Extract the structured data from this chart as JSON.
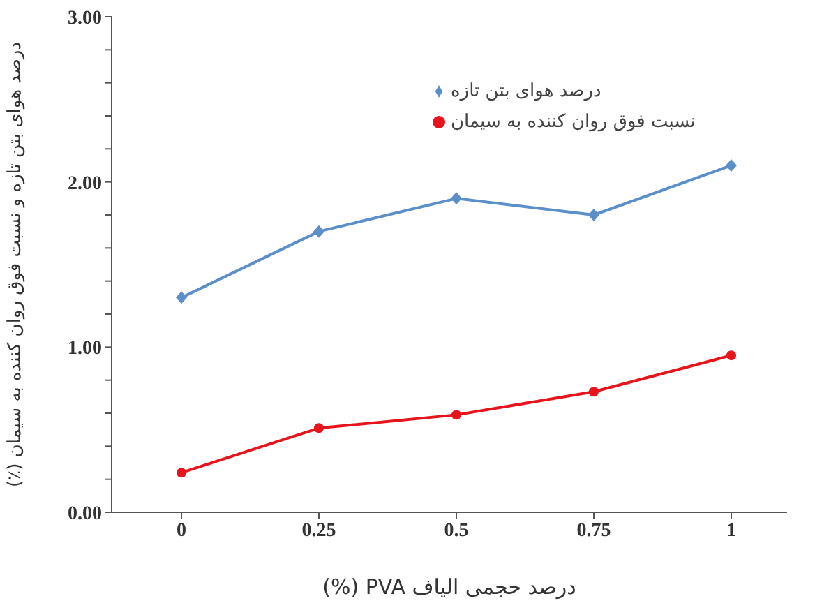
{
  "chart_data": {
    "type": "line",
    "xlabel": "درصد حجمی الیاف PVA (%)",
    "ylabel": "درصد هوای بتن تازه و نسبت فوق روان کننده به سیمان (٪)",
    "categories": [
      "0",
      "0.25",
      "0.5",
      "0.75",
      "1"
    ],
    "series": [
      {
        "name": "درصد هوای بتن تازه",
        "color": "#5b8fc9",
        "marker": "diamond",
        "values": [
          1.3,
          1.7,
          1.9,
          1.8,
          2.1
        ]
      },
      {
        "name": "نسبت فوق روان کننده به سیمان",
        "color": "#e8141c",
        "marker": "circle",
        "values": [
          0.24,
          0.51,
          0.59,
          0.73,
          0.95
        ]
      }
    ],
    "ylim": [
      0,
      3
    ],
    "yticks": [
      {
        "value": 0,
        "label": "0.00"
      },
      {
        "value": 0.2,
        "label": null
      },
      {
        "value": 0.4,
        "label": null
      },
      {
        "value": 0.6,
        "label": null
      },
      {
        "value": 0.8,
        "label": null
      },
      {
        "value": 1,
        "label": "1.00"
      },
      {
        "value": 1.2,
        "label": null
      },
      {
        "value": 1.4,
        "label": null
      },
      {
        "value": 1.6,
        "label": null
      },
      {
        "value": 1.8,
        "label": null
      },
      {
        "value": 2,
        "label": "2.00"
      },
      {
        "value": 2.2,
        "label": null
      },
      {
        "value": 2.4,
        "label": null
      },
      {
        "value": 2.6,
        "label": null
      },
      {
        "value": 2.8,
        "label": null
      },
      {
        "value": 3,
        "label": "3.00"
      }
    ],
    "grid": false,
    "legend": "top right",
    "line_style": "solid"
  }
}
